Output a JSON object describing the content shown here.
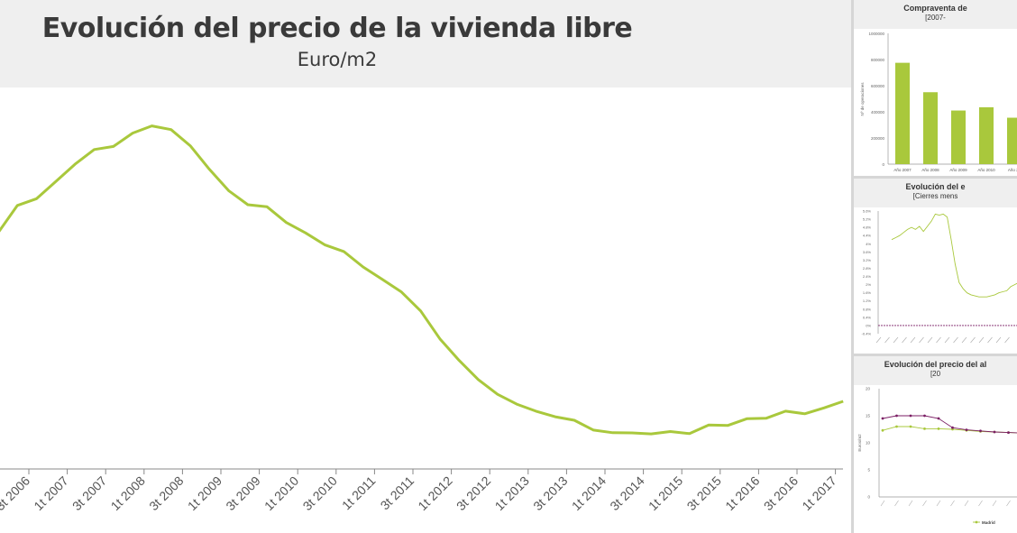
{
  "colors": {
    "green": "#a9c83c",
    "purple": "#7b1e64",
    "axis": "#666666",
    "grid": "#e4e4e4"
  },
  "main": {
    "title": "Evolución del precio de la vivienda libre",
    "subtitle": "Euro/m2",
    "chart_data": {
      "type": "line",
      "title": "Evolución del precio de la vivienda libre",
      "subtitle": "Euro/m2",
      "tick_labels": [
        "3t 2006",
        "1t 2007",
        "3t 2007",
        "1t 2008",
        "3t 2008",
        "1t 2009",
        "3t 2009",
        "1t 2010",
        "3t 2010",
        "1t 2011",
        "3t 2011",
        "1t 2012",
        "3t 2012",
        "1t 2013",
        "3t 2013",
        "1t 2014",
        "3t 2014",
        "1t 2015",
        "3t 2015",
        "1t 2016",
        "3t 2016",
        "1t 2017"
      ],
      "series": [
        {
          "values": [
            2560,
            2676,
            2705,
            2778,
            2852,
            2915,
            2928,
            2985,
            3016,
            3000,
            2931,
            2830,
            2739,
            2679,
            2670,
            2603,
            2559,
            2508,
            2479,
            2413,
            2360,
            2306,
            2225,
            2106,
            2014,
            1932,
            1869,
            1827,
            1797,
            1773,
            1758,
            1716,
            1705,
            1704,
            1700,
            1710,
            1701,
            1738,
            1736,
            1765,
            1767,
            1797,
            1786,
            1811,
            1839
          ]
        }
      ],
      "ylim": [
        1550,
        3180
      ]
    }
  },
  "panel1": {
    "title": "Compraventa de",
    "subtitle": "[2007-",
    "chart_data": {
      "type": "bar",
      "ylabel": "Nº de operaciones",
      "yticks": [
        "1000000",
        "800000",
        "600000",
        "400000",
        "200000",
        "0"
      ],
      "categories": [
        "Año 2007",
        "Año 2008",
        "Año 2009",
        "Año 2010",
        "Año 20"
      ],
      "values": [
        775000,
        550000,
        410000,
        435000,
        355000
      ],
      "ylim": [
        0,
        1000000
      ]
    }
  },
  "panel2": {
    "title": "Evolución del e",
    "subtitle": "[Cierres mens",
    "chart_data": {
      "type": "line",
      "yticks": [
        "5.6%",
        "5.2%",
        "4.8%",
        "4.4%",
        "4%",
        "3.6%",
        "3.2%",
        "2.8%",
        "2.4%",
        "2%",
        "1.6%",
        "1.2%",
        "0.8%",
        "0.4%",
        "0%",
        "-0.4%"
      ],
      "series": [
        {
          "values": [
            4.2,
            4.3,
            4.4,
            4.55,
            4.7,
            4.8,
            4.7,
            4.85,
            4.6,
            4.85,
            5.1,
            5.45,
            5.4,
            5.45,
            5.3,
            4.2,
            3.0,
            2.1,
            1.8,
            1.6,
            1.5,
            1.45,
            1.4,
            1.4,
            1.4,
            1.45,
            1.5,
            1.6,
            1.65,
            1.7,
            1.9,
            2.0,
            2.1,
            2.15,
            2.2,
            2.2
          ]
        }
      ],
      "reference_line": 0,
      "ylim": [
        -0.4,
        5.6
      ]
    }
  },
  "panel3": {
    "title": "Evolución del precio del al",
    "subtitle": "[20",
    "chart_data": {
      "type": "line",
      "ylabel": "Euros/m2",
      "yticks": [
        "20",
        "15",
        "10",
        "5",
        "0"
      ],
      "series": [
        {
          "name": "Madrid",
          "values": [
            12.3,
            13.0,
            13.0,
            12.6,
            12.6,
            12.5,
            12.3,
            12.1,
            12.0,
            11.9,
            11.8,
            11.7
          ]
        },
        {
          "values": [
            14.5,
            15.0,
            15.0,
            15.0,
            14.5,
            12.8,
            12.4,
            12.2,
            12.0,
            11.9,
            11.8,
            11.6
          ]
        }
      ],
      "ylim": [
        0,
        20
      ]
    }
  }
}
